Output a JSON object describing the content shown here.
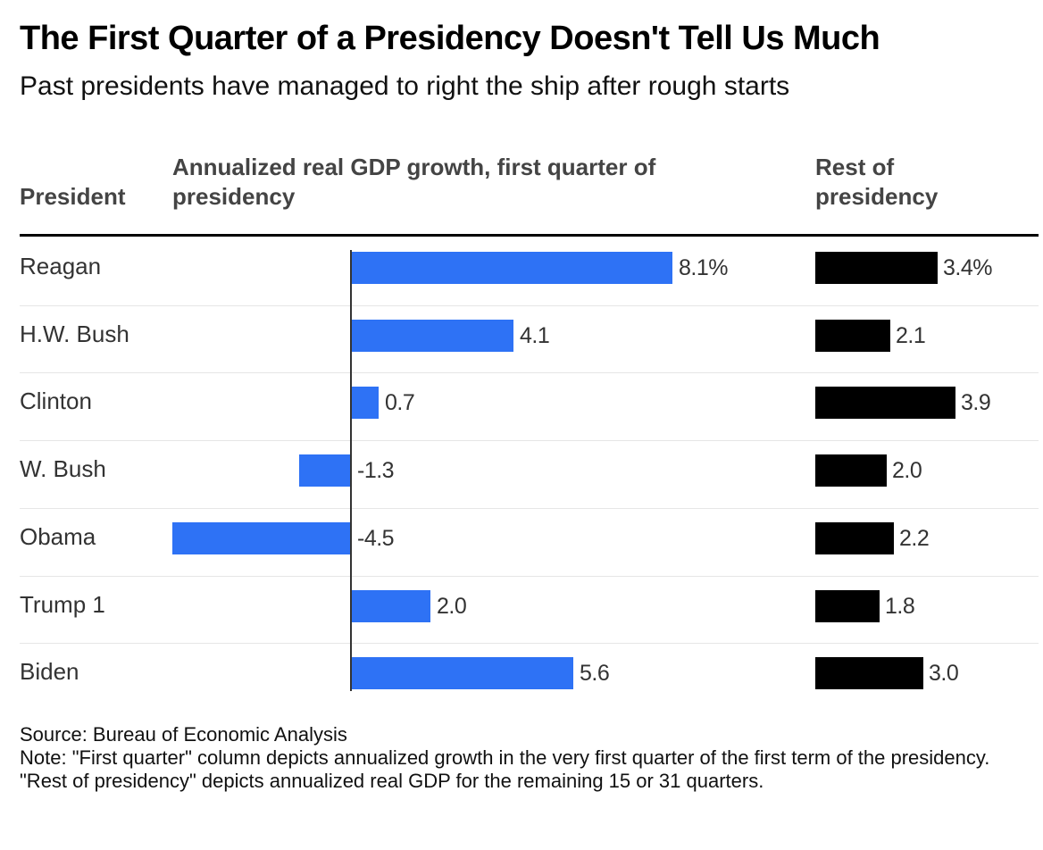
{
  "chart_data": {
    "type": "bar",
    "title": "The First Quarter of a Presidency Doesn't Tell Us Much",
    "subtitle": "Past presidents have managed to right the ship after rough starts",
    "columns": {
      "president": "President",
      "first_quarter": "Annualized real GDP growth, first quarter of presidency",
      "rest": "Rest of presidency"
    },
    "categories": [
      "Reagan",
      "H.W. Bush",
      "Clinton",
      "W. Bush",
      "Obama",
      "Trump 1",
      "Biden"
    ],
    "series": [
      {
        "key": "first_quarter",
        "values": [
          8.1,
          4.1,
          0.7,
          -1.3,
          -4.5,
          2.0,
          5.6
        ],
        "labels": [
          "8.1%",
          "4.1",
          "0.7",
          "-1.3",
          "-4.5",
          "2.0",
          "5.6"
        ],
        "color": "#2e72f5"
      },
      {
        "key": "rest",
        "values": [
          3.4,
          2.1,
          3.9,
          2.0,
          2.2,
          1.8,
          3.0
        ],
        "labels": [
          "3.4%",
          "2.1",
          "3.9",
          "2.0",
          "2.2",
          "1.8",
          "3.0"
        ],
        "color": "#000000"
      }
    ],
    "source": "Source: Bureau of Economic Analysis",
    "note": "Note: \"First quarter\" column depicts annualized growth in the very first quarter of the first term of the presidency. \"Rest of presidency\" depicts annualized real GDP for the remaining 15 or 31 quarters."
  }
}
